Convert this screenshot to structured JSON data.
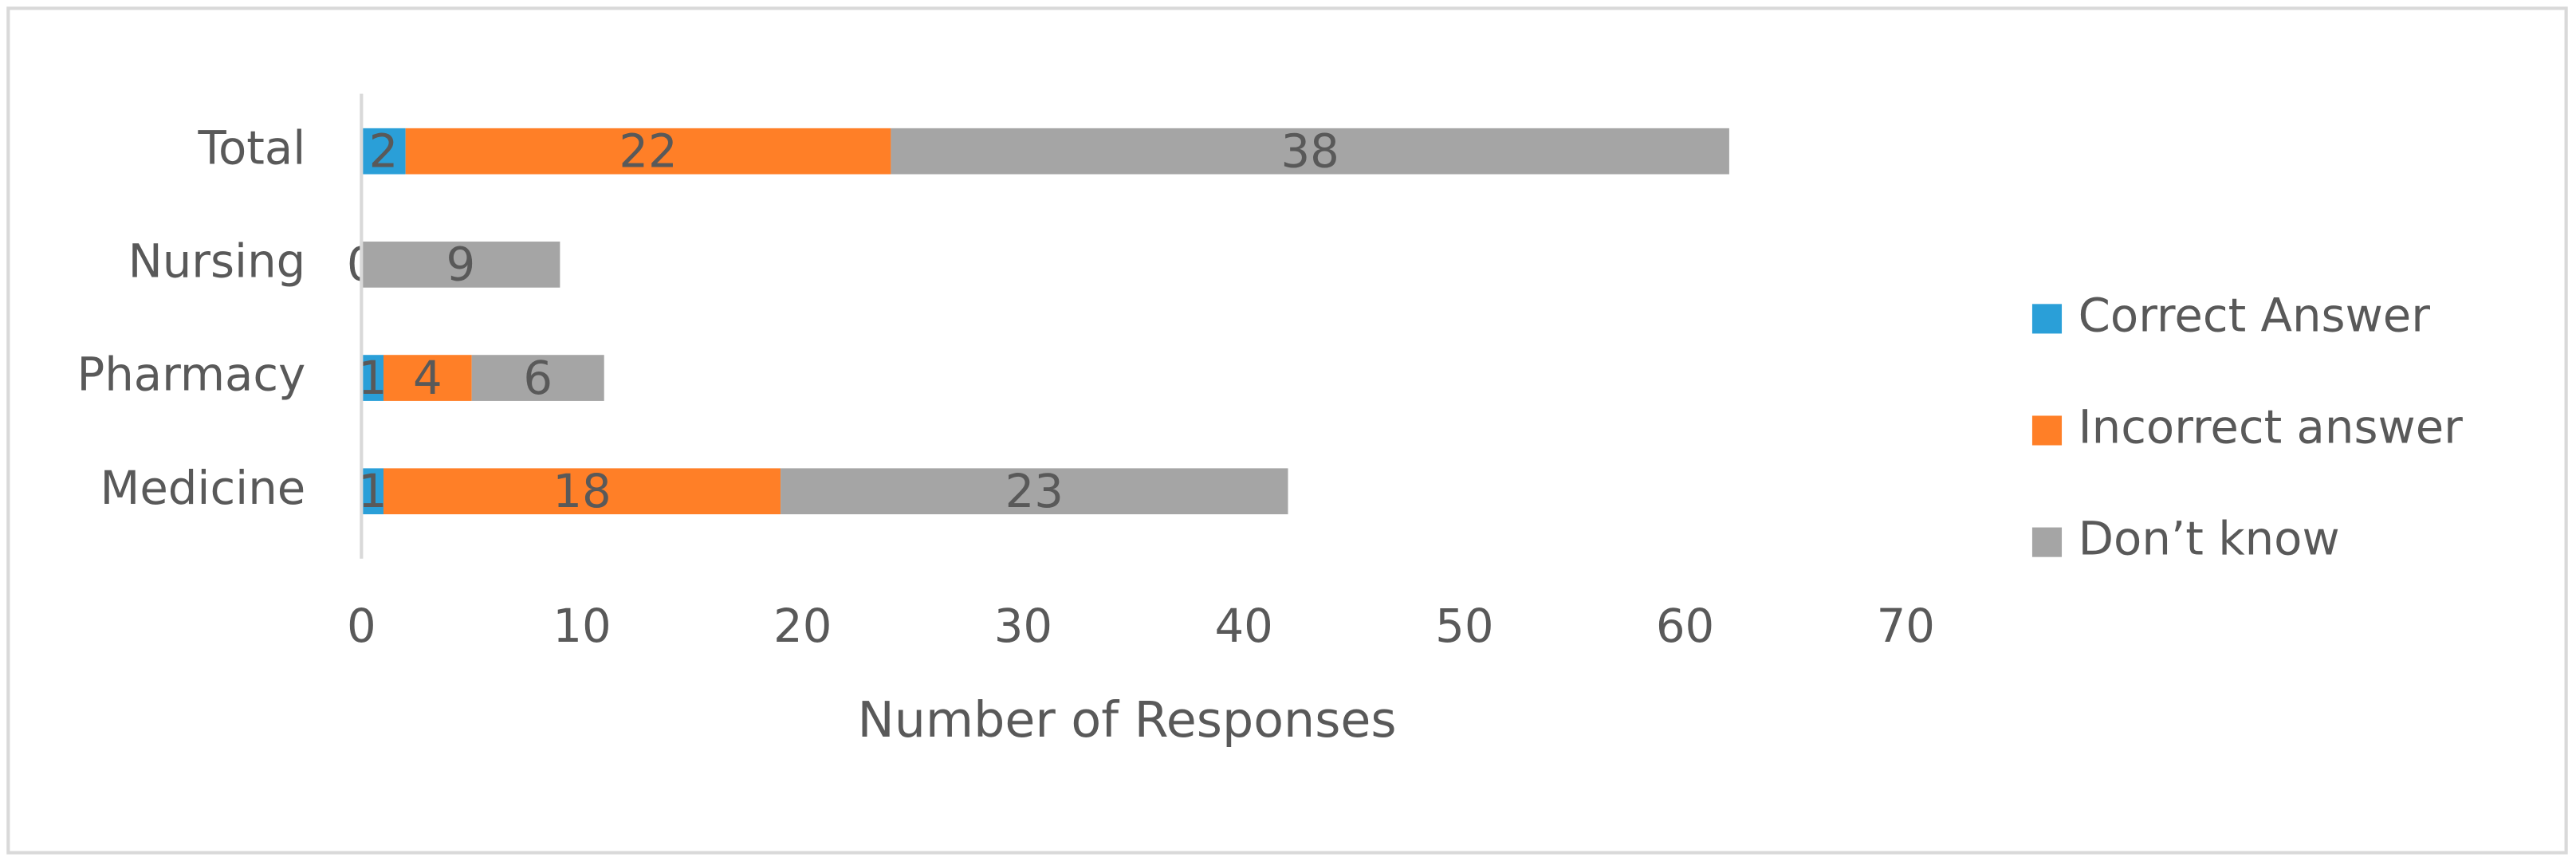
{
  "chart_data": {
    "type": "stacked-bar-horizontal",
    "x_label": "Number of Responses",
    "categories": [
      "Medicine",
      "Pharmacy",
      "Nursing",
      "Total"
    ],
    "series": [
      {
        "name": "Correct Answer",
        "color": "#2a9fd8",
        "values": [
          1,
          1,
          0,
          2
        ]
      },
      {
        "name": "Incorrect answer",
        "color": "#ff7f27",
        "values": [
          18,
          4,
          0,
          22
        ]
      },
      {
        "name": "Don’t know",
        "color": "#a5a5a5",
        "values": [
          23,
          6,
          9,
          38
        ]
      }
    ],
    "xlim": [
      0,
      70
    ],
    "xticks": [
      0,
      10,
      20,
      30,
      40,
      50,
      60,
      70
    ],
    "legend": "right"
  }
}
